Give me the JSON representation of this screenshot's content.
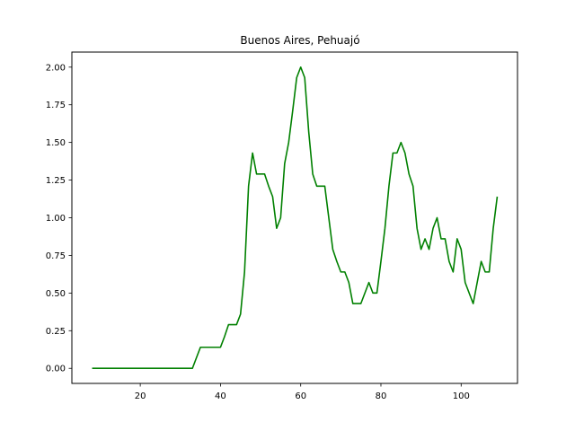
{
  "chart_data": {
    "type": "line",
    "title": "Buenos Aires, Pehuajó",
    "xlabel": "",
    "ylabel": "",
    "xlim": [
      2.95,
      114.05
    ],
    "ylim": [
      -0.1,
      2.1
    ],
    "xticks": [
      20,
      40,
      60,
      80,
      100
    ],
    "yticks": [
      0.0,
      0.25,
      0.5,
      0.75,
      1.0,
      1.25,
      1.5,
      1.75,
      2.0
    ],
    "xtick_labels": [
      "20",
      "40",
      "60",
      "80",
      "100"
    ],
    "ytick_labels": [
      "0.00",
      "0.25",
      "0.50",
      "0.75",
      "1.00",
      "1.25",
      "1.50",
      "1.75",
      "2.00"
    ],
    "grid": false,
    "series": [
      {
        "color": "#008000",
        "x": [
          8,
          9,
          10,
          11,
          12,
          13,
          14,
          15,
          16,
          17,
          18,
          19,
          20,
          21,
          22,
          23,
          24,
          25,
          26,
          27,
          28,
          29,
          30,
          31,
          32,
          33,
          34,
          35,
          36,
          37,
          38,
          39,
          40,
          41,
          42,
          43,
          44,
          45,
          46,
          47,
          48,
          49,
          50,
          51,
          52,
          53,
          54,
          55,
          56,
          57,
          58,
          59,
          60,
          61,
          62,
          63,
          64,
          65,
          66,
          67,
          68,
          69,
          70,
          71,
          72,
          73,
          74,
          75,
          76,
          77,
          78,
          79,
          80,
          81,
          82,
          83,
          84,
          85,
          86,
          87,
          88,
          89,
          90,
          91,
          92,
          93,
          94,
          95,
          96,
          97,
          98,
          99,
          100,
          101,
          102,
          103,
          104,
          105,
          106,
          107,
          108,
          109
        ],
        "y": [
          0,
          0,
          0,
          0,
          0,
          0,
          0,
          0,
          0,
          0,
          0,
          0,
          0,
          0,
          0,
          0,
          0,
          0,
          0,
          0,
          0,
          0,
          0,
          0,
          0,
          0,
          0.07,
          0.14,
          0.14,
          0.14,
          0.14,
          0.14,
          0.14,
          0.21,
          0.29,
          0.29,
          0.29,
          0.36,
          0.64,
          1.21,
          1.43,
          1.29,
          1.29,
          1.29,
          1.21,
          1.14,
          0.93,
          1.0,
          1.36,
          1.5,
          1.71,
          1.93,
          2.0,
          1.93,
          1.57,
          1.29,
          1.21,
          1.21,
          1.21,
          1.0,
          0.79,
          0.71,
          0.64,
          0.64,
          0.57,
          0.43,
          0.43,
          0.43,
          0.5,
          0.57,
          0.5,
          0.5,
          0.71,
          0.93,
          1.21,
          1.43,
          1.43,
          1.5,
          1.43,
          1.29,
          1.21,
          0.93,
          0.79,
          0.86,
          0.79,
          0.93,
          1.0,
          0.86,
          0.86,
          0.71,
          0.64,
          0.86,
          0.79,
          0.57,
          0.5,
          0.43,
          0.57,
          0.71,
          0.64,
          0.64,
          0.93,
          1.14
        ]
      }
    ]
  }
}
